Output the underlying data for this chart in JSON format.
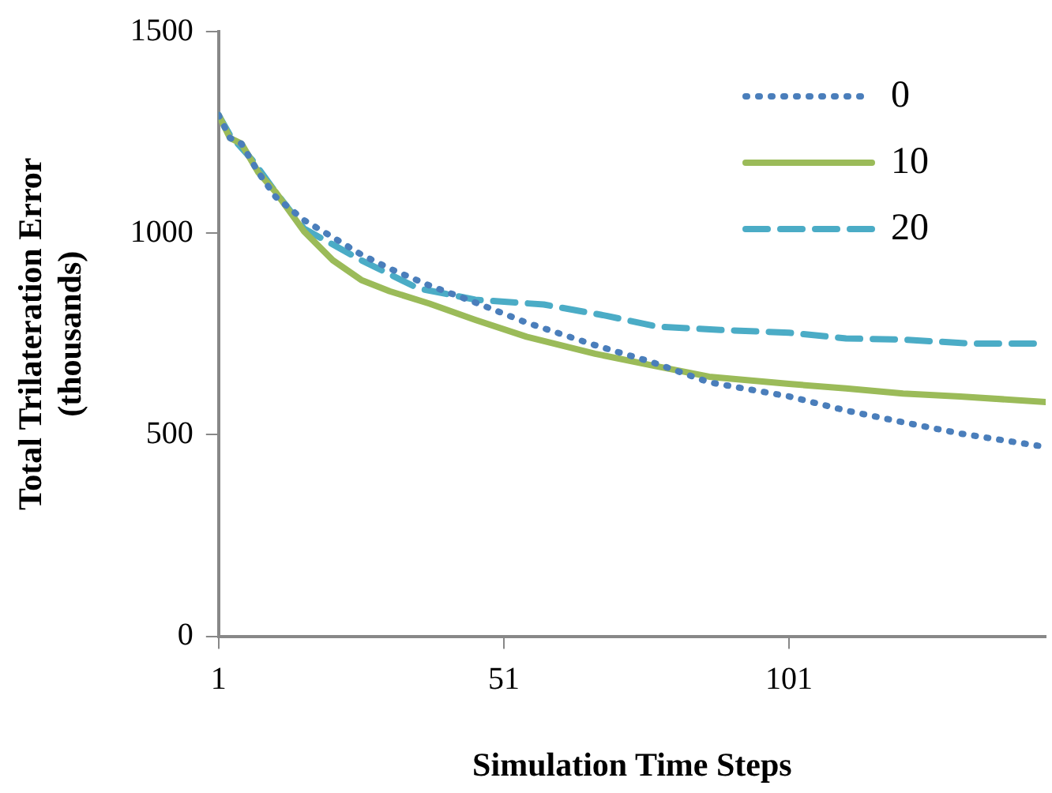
{
  "chart_data": {
    "type": "line",
    "xlabel": "Simulation Time Steps",
    "ylabel": "Total Trilateration Error\n(thousands)",
    "xlim": [
      1,
      146
    ],
    "xticks": [
      1,
      51,
      101
    ],
    "ylim": [
      0,
      1500
    ],
    "yticks": [
      0,
      500,
      1000,
      1500
    ],
    "grid": false,
    "legend": "top right",
    "marker": "none",
    "series": [
      {
        "name": "0",
        "color": "#4a7ebb",
        "line_style": "dotted",
        "x": [
          1,
          3,
          5,
          8,
          11,
          16,
          21,
          26,
          31,
          38,
          46,
          55,
          67,
          77,
          87,
          101,
          111,
          121,
          131,
          145
        ],
        "values": [
          1293,
          1236,
          1222,
          1150,
          1090,
          1032,
          990,
          947,
          912,
          870,
          828,
          778,
          722,
          680,
          630,
          595,
          560,
          531,
          503,
          472
        ]
      },
      {
        "name": "10",
        "color": "#9bbb59",
        "line_style": "solid",
        "x": [
          1,
          3,
          5,
          8,
          11,
          16,
          21,
          26,
          31,
          38,
          46,
          55,
          67,
          77,
          87,
          101,
          111,
          121,
          131,
          146
        ],
        "values": [
          1293,
          1236,
          1222,
          1150,
          1102,
          1004,
          933,
          884,
          856,
          825,
          785,
          743,
          701,
          672,
          644,
          626,
          615,
          602,
          595,
          581
        ]
      },
      {
        "name": "20",
        "color": "#4bacc6",
        "line_style": "dashed",
        "x": [
          1,
          3,
          7,
          11,
          16,
          26,
          36,
          46,
          58,
          69,
          78,
          89,
          101,
          111,
          121,
          133,
          145
        ],
        "values": [
          1293,
          1243,
          1180,
          1102,
          1011,
          933,
          863,
          835,
          823,
          795,
          768,
          760,
          753,
          739,
          736,
          726,
          726
        ]
      }
    ]
  }
}
